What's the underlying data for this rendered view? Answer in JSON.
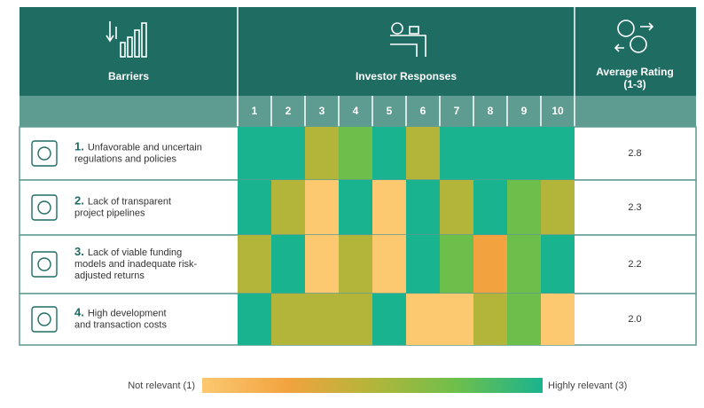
{
  "header": {
    "barriers": "Barriers",
    "responses": "Investor Responses",
    "average": [
      "Average Rating",
      "(1-3)"
    ]
  },
  "columns": [
    1,
    2,
    3,
    4,
    5,
    6,
    7,
    8,
    9,
    10
  ],
  "scale": {
    "min": 1,
    "max": 3,
    "colors": [
      "#fcc870",
      "#f2a33f",
      "#b3b53a",
      "#6dbf4c",
      "#19b48f"
    ]
  },
  "rows": [
    {
      "number": "1.",
      "label": [
        "Unfavorable and uncertain",
        "regulations and policies"
      ],
      "ratings": [
        3,
        3,
        2,
        2.5,
        3,
        2,
        3,
        3,
        3,
        3
      ],
      "average": "2.8"
    },
    {
      "number": "2.",
      "label": [
        "Lack of transparent",
        "project pipelines"
      ],
      "ratings": [
        3,
        2,
        1,
        3,
        1,
        3,
        2,
        3,
        2.5,
        2
      ],
      "average": "2.3"
    },
    {
      "number": "3.",
      "label": [
        "Lack of viable funding",
        "models and inadequate risk-",
        "adjusted returns"
      ],
      "ratings": [
        2,
        3,
        1,
        2,
        1,
        3,
        2.5,
        1.5,
        2.5,
        3
      ],
      "average": "2.2"
    },
    {
      "number": "4.",
      "label": [
        "High development",
        "and transaction costs"
      ],
      "ratings": [
        3,
        2,
        2,
        2,
        3,
        1,
        1,
        2,
        2.5,
        1
      ],
      "average": "2.0"
    }
  ],
  "legend": {
    "low": "Not relevant (1)",
    "high": "Highly relevant (3)"
  }
}
